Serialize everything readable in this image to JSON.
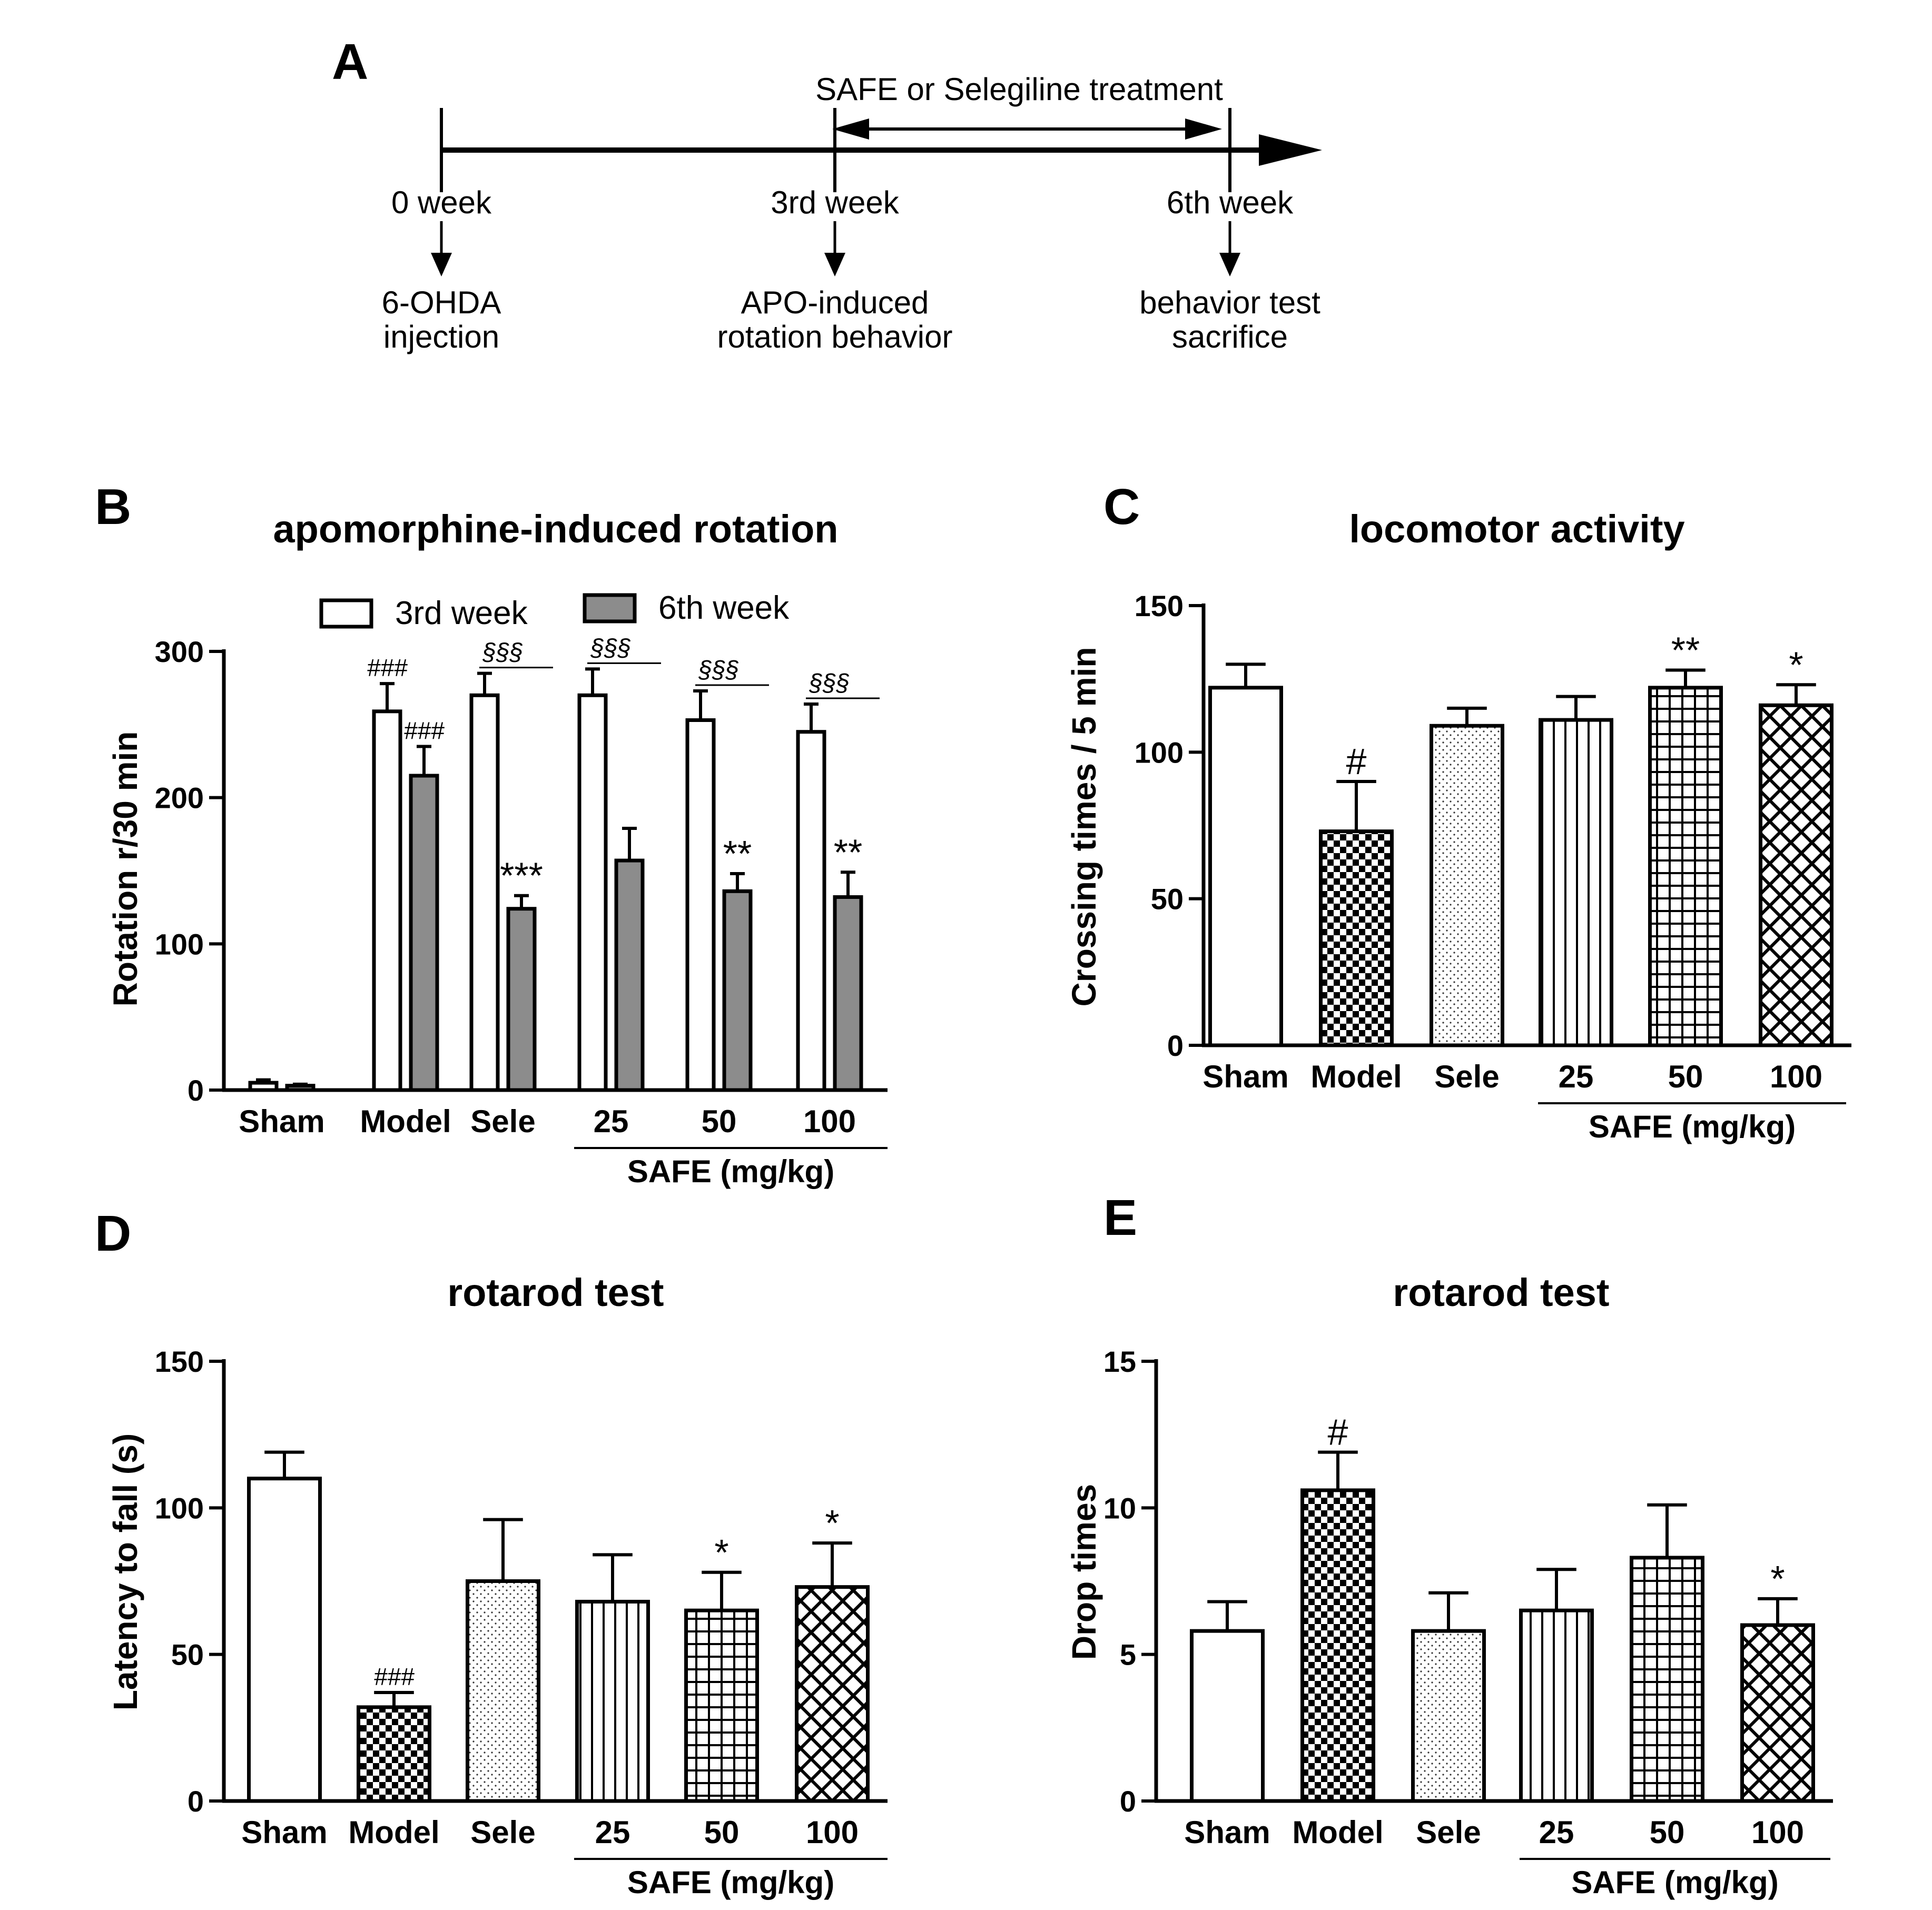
{
  "timeline": {
    "panel": "A",
    "treatment_label": "SAFE or Selegiline treatment",
    "points": [
      {
        "time": "0 week",
        "event_line1": "6-OHDA",
        "event_line2": "injection"
      },
      {
        "time": "3rd week",
        "event_line1": "APO-induced",
        "event_line2": "rotation behavior"
      },
      {
        "time": "6th week",
        "event_line1": "behavior test",
        "event_line2": "sacrifice"
      }
    ]
  },
  "chart_data": [
    {
      "panel": "B",
      "type": "bar",
      "title": "apomorphine-induced rotation",
      "ylabel": "Rotation r/30 min",
      "xlabel": "",
      "ylim": [
        0,
        300
      ],
      "yticks": [
        0,
        100,
        200,
        300
      ],
      "categories": [
        "Sham",
        "Model",
        "Sele",
        "25",
        "50",
        "100"
      ],
      "group_label": "SAFE (mg/kg)",
      "legend": [
        "3rd week",
        "6th week"
      ],
      "series": [
        {
          "name": "3rd week",
          "values": [
            5,
            259,
            270,
            270,
            253,
            245
          ],
          "errors": [
            2,
            19,
            15,
            18,
            20,
            19
          ],
          "labels": [
            "",
            "###",
            "",
            "",
            "",
            ""
          ]
        },
        {
          "name": "6th week",
          "values": [
            3,
            215,
            124,
            157,
            136,
            132
          ],
          "errors": [
            1,
            20,
            9,
            22,
            12,
            17
          ],
          "labels": [
            "",
            "###",
            "***",
            "",
            "**",
            "**"
          ]
        }
      ],
      "section_marks": [
        "",
        "",
        "§§§",
        "§§§",
        "§§§",
        "§§§"
      ]
    },
    {
      "panel": "C",
      "type": "bar",
      "title": "locomotor activity",
      "ylabel": "Crossing times / 5 min",
      "xlabel": "",
      "ylim": [
        0,
        150
      ],
      "yticks": [
        0,
        50,
        100,
        150
      ],
      "categories": [
        "Sham",
        "Model",
        "Sele",
        "25",
        "50",
        "100"
      ],
      "group_label": "SAFE (mg/kg)",
      "values": [
        122,
        73,
        109,
        111,
        122,
        116
      ],
      "errors": [
        8,
        17,
        6,
        8,
        6,
        7
      ],
      "labels": [
        "",
        "#",
        "",
        "",
        "**",
        "*"
      ]
    },
    {
      "panel": "D",
      "type": "bar",
      "title": "rotarod test",
      "ylabel": "Latency to fall (s)",
      "xlabel": "",
      "ylim": [
        0,
        150
      ],
      "yticks": [
        0,
        50,
        100,
        150
      ],
      "categories": [
        "Sham",
        "Model",
        "Sele",
        "25",
        "50",
        "100"
      ],
      "group_label": "SAFE (mg/kg)",
      "values": [
        110,
        32,
        75,
        68,
        65,
        73
      ],
      "errors": [
        9,
        5,
        21,
        16,
        13,
        15
      ],
      "labels": [
        "",
        "###",
        "",
        "",
        "*",
        "*"
      ]
    },
    {
      "panel": "E",
      "type": "bar",
      "title": "rotarod test",
      "ylabel": "Drop times",
      "xlabel": "",
      "ylim": [
        0,
        15
      ],
      "yticks": [
        0,
        5,
        10,
        15
      ],
      "categories": [
        "Sham",
        "Model",
        "Sele",
        "25",
        "50",
        "100"
      ],
      "group_label": "SAFE (mg/kg)",
      "values": [
        5.8,
        10.6,
        5.8,
        6.5,
        8.3,
        6.0
      ],
      "errors": [
        1.0,
        1.3,
        1.3,
        1.4,
        1.8,
        0.9
      ],
      "labels": [
        "",
        "#",
        "",
        "",
        "",
        "*"
      ]
    }
  ]
}
